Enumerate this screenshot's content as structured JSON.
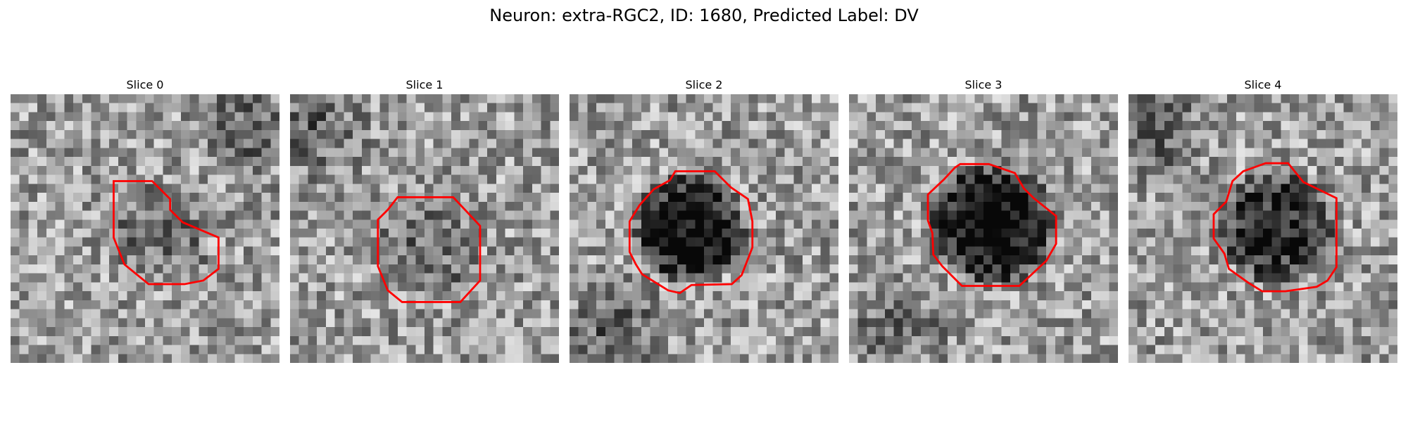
{
  "figure": {
    "title": "Neuron: extra-RGC2, ID: 1680, Predicted Label: DV",
    "contour_color": "#ff0000",
    "image_colormap": "grayscale",
    "panels": [
      {
        "title": "Slice 0",
        "seed": 11,
        "blob_darkness": 0.12,
        "bg_dark_region": "top-right"
      },
      {
        "title": "Slice 1",
        "seed": 23,
        "blob_darkness": 0.1,
        "bg_dark_region": "top-left"
      },
      {
        "title": "Slice 2",
        "seed": 37,
        "blob_darkness": 0.55,
        "bg_dark_region": "bottom-left"
      },
      {
        "title": "Slice 3",
        "seed": 41,
        "blob_darkness": 0.6,
        "bg_dark_region": "bottom-left"
      },
      {
        "title": "Slice 4",
        "seed": 53,
        "blob_darkness": 0.4,
        "bg_dark_region": "top-left"
      }
    ]
  }
}
